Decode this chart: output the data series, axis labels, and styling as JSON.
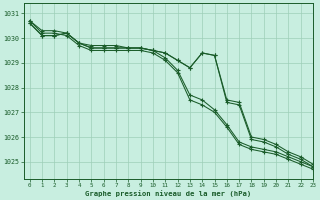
{
  "title": "Graphe pression niveau de la mer (hPa)",
  "background_color": "#c8eee0",
  "plot_bg_color": "#c8eee0",
  "grid_color": "#9ecfb8",
  "line_color": "#1a5c2a",
  "xlim": [
    -0.5,
    23
  ],
  "ylim": [
    1024.3,
    1031.4
  ],
  "yticks": [
    1025,
    1026,
    1027,
    1028,
    1029,
    1030,
    1031
  ],
  "xticks": [
    0,
    1,
    2,
    3,
    4,
    5,
    6,
    7,
    8,
    9,
    10,
    11,
    12,
    13,
    14,
    15,
    16,
    17,
    18,
    19,
    20,
    21,
    22,
    23
  ],
  "series": [
    [
      1030.6,
      1030.1,
      1030.1,
      1030.2,
      1029.8,
      1029.7,
      1029.7,
      1029.7,
      1029.6,
      1029.6,
      1029.5,
      1029.4,
      1029.1,
      1028.8,
      1029.4,
      1029.3,
      1027.4,
      1027.3,
      1025.9,
      1025.8,
      1025.6,
      1025.3,
      1025.1,
      1024.8
    ],
    [
      1030.6,
      1030.1,
      1030.1,
      1030.2,
      1029.8,
      1029.6,
      1029.6,
      1029.6,
      1029.6,
      1029.6,
      1029.5,
      1029.4,
      1029.1,
      1028.8,
      1029.4,
      1029.3,
      1027.5,
      1027.4,
      1026.0,
      1025.9,
      1025.7,
      1025.4,
      1025.2,
      1024.9
    ],
    [
      1030.7,
      1030.2,
      1030.2,
      1030.1,
      1029.7,
      1029.5,
      1029.5,
      1029.5,
      1029.5,
      1029.5,
      1029.4,
      1029.1,
      1028.6,
      1027.5,
      1027.3,
      1027.0,
      1026.4,
      1025.7,
      1025.5,
      1025.4,
      1025.3,
      1025.1,
      1024.9,
      1024.7
    ],
    [
      1030.7,
      1030.3,
      1030.3,
      1030.2,
      1029.8,
      1029.6,
      1029.6,
      1029.6,
      1029.6,
      1029.6,
      1029.5,
      1029.2,
      1028.7,
      1027.7,
      1027.5,
      1027.1,
      1026.5,
      1025.8,
      1025.6,
      1025.5,
      1025.4,
      1025.2,
      1025.0,
      1024.8
    ]
  ]
}
